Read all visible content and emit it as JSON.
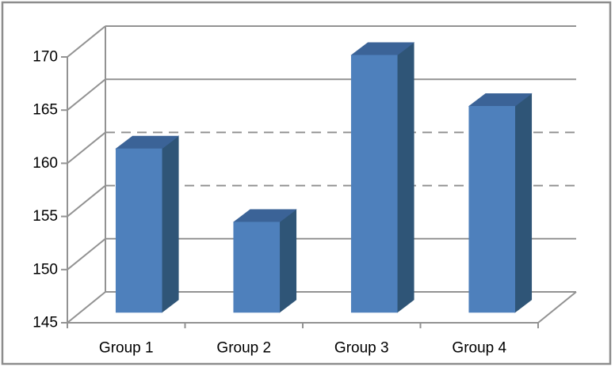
{
  "chart_data": {
    "type": "bar",
    "variant": "3d-column",
    "title": "",
    "xlabel": "",
    "ylabel": "",
    "categories": [
      "Group 1",
      "Group 2",
      "Group 3",
      "Group 4"
    ],
    "values": [
      160.4,
      153.5,
      169.2,
      164.4
    ],
    "ylim": [
      145,
      170
    ],
    "yticks": [
      145,
      150,
      155,
      160,
      165,
      170
    ],
    "ytick_labels": [
      "145",
      "150",
      "155",
      "160",
      "165",
      "170"
    ],
    "dashed_gridlines": [
      155,
      160
    ],
    "grid": true,
    "legend": false,
    "colors": {
      "bar_front": "#4E80BC",
      "bar_side": "#2F5577",
      "bar_top": "#3B6397",
      "gridline": "#929292",
      "axis_line": "#929292",
      "axis_text": "#000000",
      "frame_border": "#8C8C8C",
      "background": "#FFFFFF"
    }
  }
}
